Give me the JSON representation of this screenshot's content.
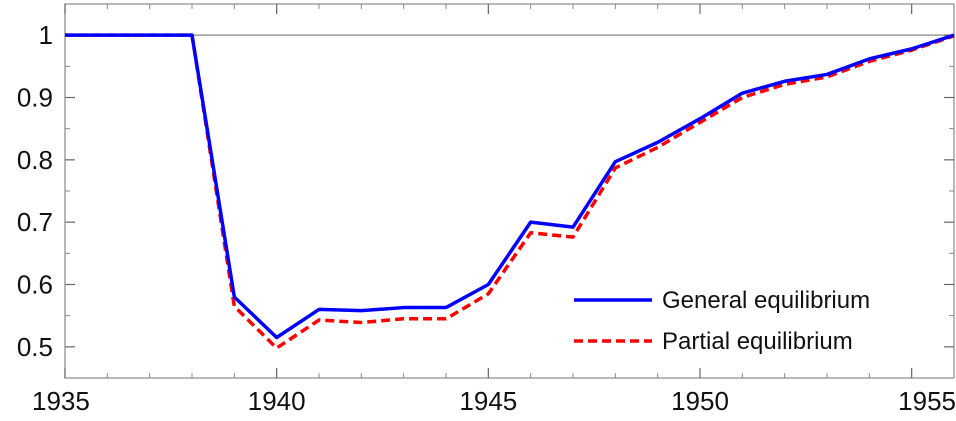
{
  "chart_data": {
    "type": "line",
    "title": "",
    "xlabel": "",
    "ylabel": "",
    "xlim": [
      1935,
      1956
    ],
    "ylim": [
      0.45,
      1.05
    ],
    "x_ticks": [
      1935,
      1940,
      1945,
      1950,
      1955
    ],
    "x_tick_labels": [
      "1935",
      "1940",
      "1945",
      "1950",
      "1955"
    ],
    "y_ticks": [
      0.5,
      0.6,
      0.7,
      0.8,
      0.9,
      1.0
    ],
    "y_tick_labels": [
      "0.5",
      "0.6",
      "0.7",
      "0.8",
      "0.9",
      "1"
    ],
    "reference_line": 1.0,
    "grid": false,
    "legend_position": "bottom-right",
    "x": [
      1935,
      1936,
      1937,
      1938,
      1939,
      1940,
      1941,
      1942,
      1943,
      1944,
      1945,
      1946,
      1947,
      1948,
      1949,
      1950,
      1951,
      1952,
      1953,
      1954,
      1955,
      1956
    ],
    "series": [
      {
        "name": "General equilibrium",
        "color": "#0000ff",
        "style": "solid",
        "values": [
          1.0,
          1.0,
          1.0,
          1.0,
          0.58,
          0.515,
          0.56,
          0.558,
          0.563,
          0.563,
          0.6,
          0.7,
          0.692,
          0.797,
          0.828,
          0.866,
          0.907,
          0.926,
          0.937,
          0.962,
          0.978,
          1.0
        ]
      },
      {
        "name": "Partial equilibrium",
        "color": "#ff0000",
        "style": "dashed",
        "values": [
          1.0,
          1.0,
          1.0,
          1.0,
          0.565,
          0.498,
          0.543,
          0.539,
          0.545,
          0.545,
          0.585,
          0.683,
          0.676,
          0.787,
          0.82,
          0.86,
          0.9,
          0.921,
          0.933,
          0.958,
          0.976,
          0.999
        ]
      }
    ]
  }
}
